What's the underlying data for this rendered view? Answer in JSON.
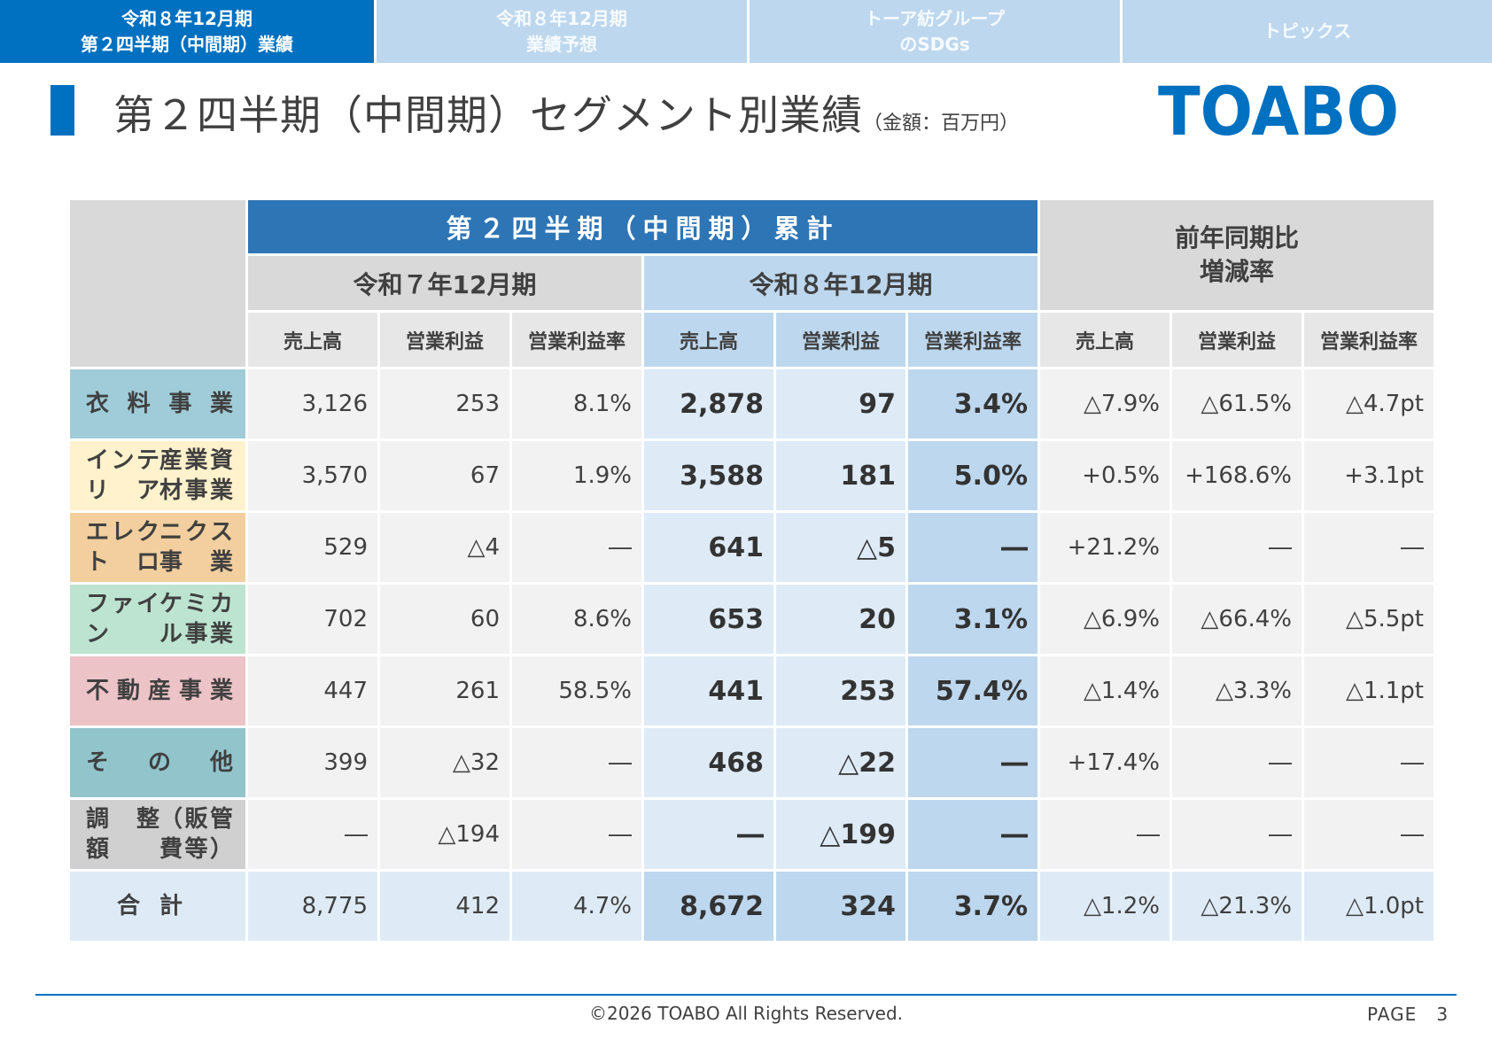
{
  "nav": {
    "tabs": [
      {
        "label": "令和８年12月期\n第２四半期（中間期）業績",
        "active": true
      },
      {
        "label": "令和８年12月期\n業績予想",
        "active": false
      },
      {
        "label": "トーア紡グループ\nのSDGs",
        "active": false
      },
      {
        "label": "トピックス",
        "active": false
      }
    ]
  },
  "header": {
    "title": "第２四半期（中間期）セグメント別業績",
    "unit": "（金額：百万円）",
    "logo": "TOABO"
  },
  "table": {
    "cumulative_header": "第２四半期（中間期）累計",
    "yoy_header": "前年同期比\n増減率",
    "period_prev": "令和７年12月期",
    "period_curr": "令和８年12月期",
    "sub_headers": [
      "売上高",
      "営業利益",
      "営業利益率",
      "売上高",
      "営業利益",
      "営業利益率",
      "売上高",
      "営業利益",
      "営業利益率"
    ],
    "rows": [
      {
        "label": [
          "衣料事業"
        ],
        "color": "#9fccd8",
        "prev": [
          "3,126",
          "253",
          "8.1%"
        ],
        "curr": [
          "2,878",
          "97",
          "3.4%"
        ],
        "yoy": [
          "△7.9%",
          "△61.5%",
          "△4.7pt"
        ]
      },
      {
        "label": [
          "インテリア",
          "産業資材事業"
        ],
        "color": "#fff2cc",
        "prev": [
          "3,570",
          "67",
          "1.9%"
        ],
        "curr": [
          "3,588",
          "181",
          "5.0%"
        ],
        "yoy": [
          "+0.5%",
          "+168.6%",
          "+3.1pt"
        ]
      },
      {
        "label": [
          "エレクトロ",
          "ニクス事業"
        ],
        "color": "#f3cf9f",
        "prev": [
          "529",
          "△4",
          "―"
        ],
        "curr": [
          "641",
          "△5",
          "―"
        ],
        "yoy": [
          "+21.2%",
          "―",
          "―"
        ]
      },
      {
        "label": [
          "ファイン",
          "ケミカル事業"
        ],
        "color": "#bde4d0",
        "prev": [
          "702",
          "60",
          "8.6%"
        ],
        "curr": [
          "653",
          "20",
          "3.1%"
        ],
        "yoy": [
          "△6.9%",
          "△66.4%",
          "△5.5pt"
        ]
      },
      {
        "label": [
          "不動産事業"
        ],
        "color": "#ecc3c7",
        "prev": [
          "447",
          "261",
          "58.5%"
        ],
        "curr": [
          "441",
          "253",
          "57.4%"
        ],
        "yoy": [
          "△1.4%",
          "△3.3%",
          "△1.1pt"
        ]
      },
      {
        "label": [
          "そ の 他"
        ],
        "color": "#92c4cc",
        "prev": [
          "399",
          "△32",
          "―"
        ],
        "curr": [
          "468",
          "△22",
          "―"
        ],
        "yoy": [
          "+17.4%",
          "―",
          "―"
        ]
      },
      {
        "label": [
          "調 整 額",
          "（販管費等）"
        ],
        "color": "#d0d0d0",
        "prev": [
          "―",
          "△194",
          "―"
        ],
        "curr": [
          "―",
          "△199",
          "―"
        ],
        "yoy": [
          "―",
          "―",
          "―"
        ]
      }
    ],
    "total": {
      "label": "合計",
      "prev": [
        "8,775",
        "412",
        "4.7%"
      ],
      "curr": [
        "8,672",
        "324",
        "3.7%"
      ],
      "yoy": [
        "△1.2%",
        "△21.3%",
        "△1.0pt"
      ]
    }
  },
  "footer": {
    "copyright": "©2026 TOABO All Rights Reserved.",
    "page_label": "PAGE",
    "page_number": "3"
  }
}
